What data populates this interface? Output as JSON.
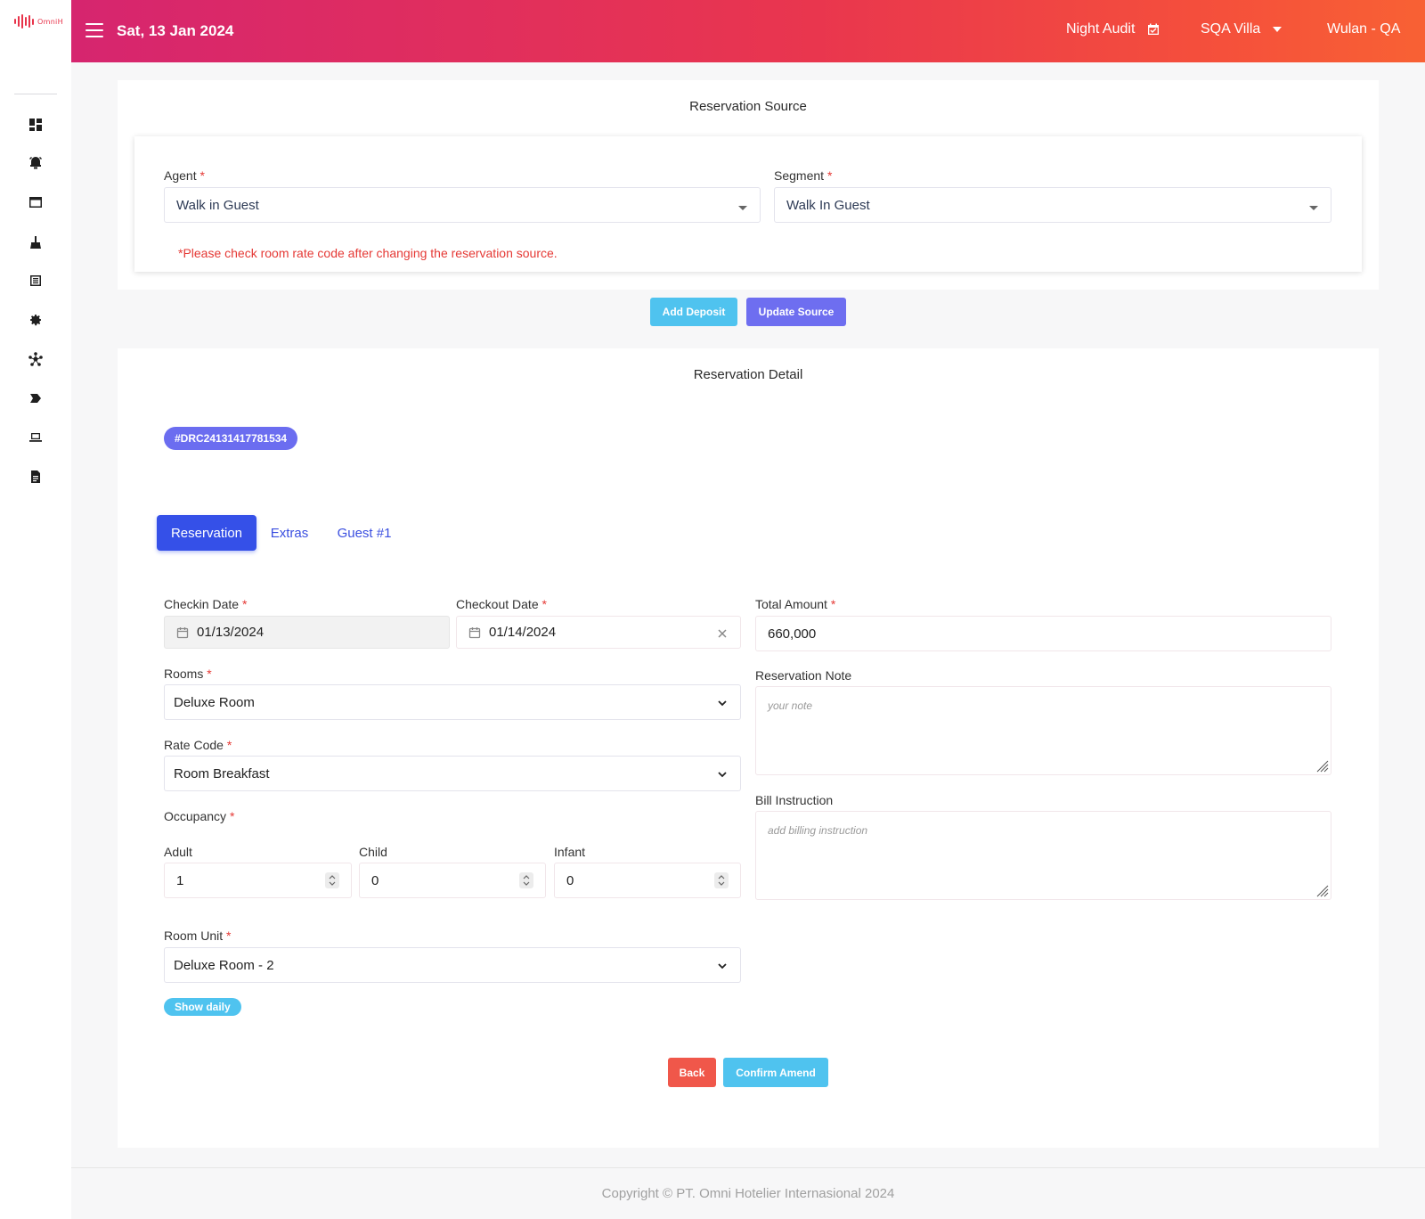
{
  "app": {
    "logo_text": "OmniH"
  },
  "header": {
    "date": "Sat, 13 Jan 2024",
    "night_audit": "Night Audit",
    "property": "SQA Villa",
    "user": "Wulan - QA"
  },
  "sidebar": {
    "icons": [
      "dashboard-icon",
      "alarm-icon",
      "window-icon",
      "cleaning-icon",
      "list-icon",
      "settings-icon",
      "workflow-icon",
      "tag-icon",
      "laptop-icon",
      "report-icon"
    ]
  },
  "source": {
    "title": "Reservation Source",
    "agent_label": "Agent",
    "agent_value": "Walk in Guest",
    "segment_label": "Segment",
    "segment_value": "Walk In Guest",
    "warning": "*Please check room rate code after changing the reservation source.",
    "add_deposit": "Add Deposit",
    "update_source": "Update Source"
  },
  "detail": {
    "title": "Reservation Detail",
    "reservation_code": "#DRC24131417781534",
    "tabs": [
      "Reservation",
      "Extras",
      "Guest #1"
    ],
    "checkin_label": "Checkin Date",
    "checkin_value": "01/13/2024",
    "checkout_label": "Checkout Date",
    "checkout_value": "01/14/2024",
    "total_label": "Total Amount",
    "total_value": "660,000",
    "rooms_label": "Rooms",
    "rooms_value": "Deluxe Room",
    "note_label": "Reservation Note",
    "note_placeholder": "your note",
    "rate_label": "Rate Code",
    "rate_value": "Room Breakfast",
    "bill_label": "Bill Instruction",
    "bill_placeholder": "add billing instruction",
    "occupancy_label": "Occupancy",
    "adult_label": "Adult",
    "adult_value": "1",
    "child_label": "Child",
    "child_value": "0",
    "infant_label": "Infant",
    "infant_value": "0",
    "unit_label": "Room Unit",
    "unit_value": "Deluxe Room - 2",
    "show_daily": "Show daily",
    "back": "Back",
    "confirm": "Confirm Amend"
  },
  "footer": {
    "copyright": "Copyright © PT. Omni Hotelier Internasional 2024"
  },
  "colors": {
    "accent": "#3550e8",
    "header_start": "#d6256f",
    "header_end": "#f86134",
    "required": "#e53935"
  }
}
